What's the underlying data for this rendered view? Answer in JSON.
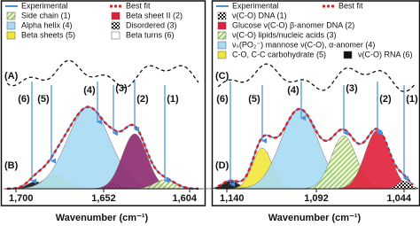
{
  "panels": [
    {
      "legend": [
        "Experimental",
        "Best fit",
        "Side chain (1)",
        "Beta sheet II (2)",
        "Alpha helix (4)",
        "Disordered (3)",
        "Beta sheets (5)",
        "Beta turns (6)"
      ],
      "top_label": "(A)",
      "bottom_label": "(B)",
      "peak_labels": [
        "(6)",
        "(5)",
        "(4)",
        "(3)",
        "(2)",
        "(1)"
      ],
      "x_ticks": [
        "1,700",
        "1,652",
        "1,604"
      ],
      "x_label": "Wavenumber (cm⁻¹)"
    },
    {
      "legend": [
        "Experimental",
        "Best fit",
        "ν(C-O) DNA (1)",
        "Glucose ν(C-O) β-anomer DNA (2)",
        "ν(C-O) lipids/nucleic acids (3)",
        "νₛ(PO₂⁻) mannose ν(C-O), α-anomer (4)",
        "C-O, C-C carbohydrate (5)",
        "ν(C-O) RNA (6)"
      ],
      "top_label": "(C)",
      "bottom_label": "(D)",
      "peak_labels": [
        "(6)",
        "(5)",
        "(4)",
        "(3)",
        "(2)",
        "(1)"
      ],
      "x_ticks": [
        "1,140",
        "1,092",
        "1,044"
      ],
      "x_label": "Wavenumber (cm⁻¹)"
    }
  ]
}
